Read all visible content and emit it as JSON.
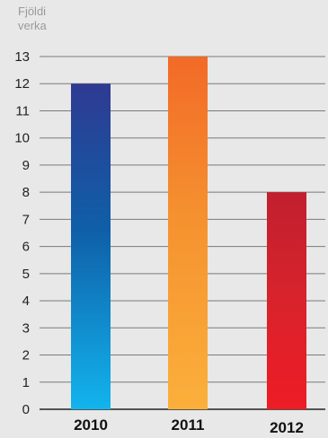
{
  "chart_data": {
    "type": "bar",
    "ylabel_lines": [
      "Fjöldi",
      "verka"
    ],
    "categories": [
      "2010",
      "2011",
      "2012"
    ],
    "values": [
      12,
      13,
      8
    ],
    "ylim": [
      0,
      13
    ],
    "yticks": [
      0,
      1,
      2,
      3,
      4,
      5,
      6,
      7,
      8,
      9,
      10,
      11,
      12,
      13
    ],
    "grid": true,
    "bar_gradients": [
      {
        "top": "#2e3a92",
        "mid": "#0f5fa8",
        "bottom": "#12b4ee"
      },
      {
        "top": "#f26a27",
        "mid": "#f5912f",
        "bottom": "#fbb03b"
      },
      {
        "top": "#c11f2f",
        "mid": "#d6232c",
        "bottom": "#ee1c25"
      }
    ],
    "colors": {
      "background": "#e8e8e8",
      "gridline": "#7a7a7a",
      "axis": "#222222"
    }
  }
}
